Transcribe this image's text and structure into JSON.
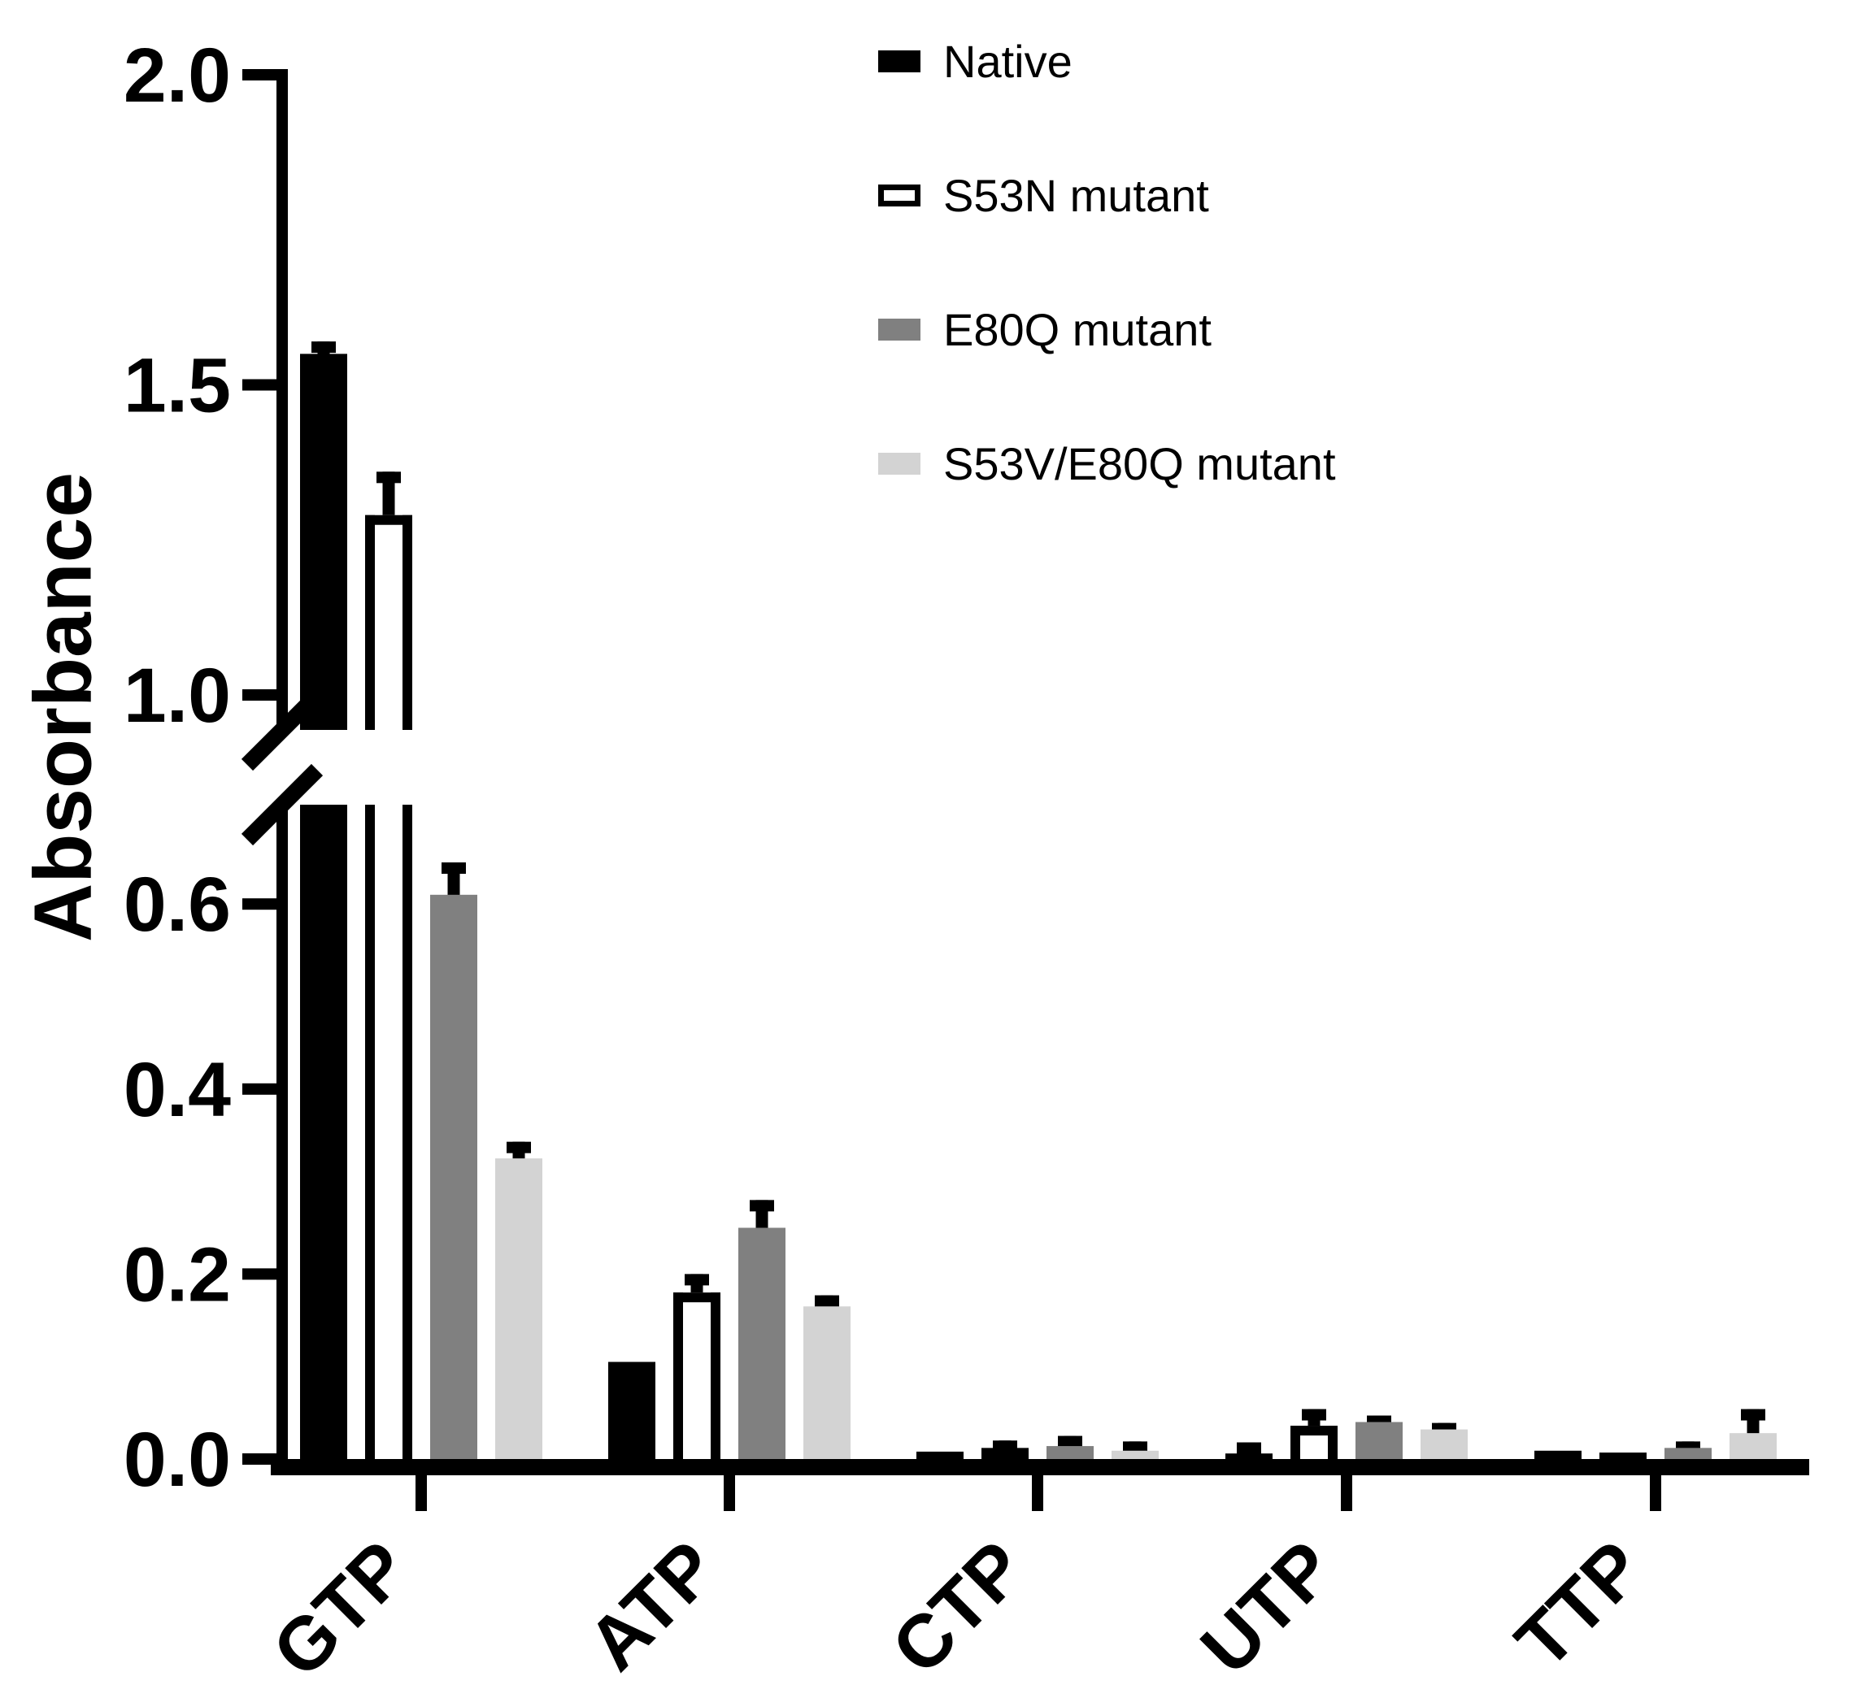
{
  "figure": {
    "background": "#ffffff"
  },
  "y_axis": {
    "label": "Absorbance",
    "lower_tick_labels": [
      "0.0",
      "0.2",
      "0.4",
      "0.6"
    ],
    "upper_tick_labels": [
      "1.0",
      "1.5",
      "2.0"
    ],
    "has_break": true
  },
  "legend": {
    "items": [
      {
        "label": "Native",
        "fill": "#000000",
        "border": "#000000"
      },
      {
        "label": "S53N mutant",
        "fill": "#ffffff",
        "border": "#000000"
      },
      {
        "label": "E80Q mutant",
        "fill": "#808080",
        "border": "#808080"
      },
      {
        "label": "S53V/E80Q mutant",
        "fill": "#d3d3d3",
        "border": "#d3d3d3"
      }
    ]
  },
  "chart_data": {
    "type": "bar",
    "title": "",
    "xlabel": "",
    "ylabel": "Absorbance",
    "categories": [
      "GTP",
      "ATP",
      "CTP",
      "UTP",
      "TTP"
    ],
    "series": [
      {
        "name": "Native",
        "color": "#000000",
        "values": [
          1.55,
          0.105,
          0.008,
          0.006,
          0.009
        ],
        "errors": [
          0.02,
          0,
          0,
          0.012,
          0
        ]
      },
      {
        "name": "S53N mutant",
        "color": "#ffffff",
        "outline": "#000000",
        "values": [
          1.29,
          0.18,
          0.012,
          0.036,
          0.007
        ],
        "errors": [
          0.07,
          0.02,
          0.008,
          0.018,
          0
        ]
      },
      {
        "name": "E80Q mutant",
        "color": "#808080",
        "values": [
          0.61,
          0.25,
          0.014,
          0.04,
          0.012
        ],
        "errors": [
          0.035,
          0.03,
          0.011,
          0.007,
          0.007
        ]
      },
      {
        "name": "S53V/E80Q mutant",
        "color": "#d3d3d3",
        "values": [
          0.325,
          0.165,
          0.009,
          0.032,
          0.028
        ],
        "errors": [
          0.018,
          0.012,
          0.01,
          0.007,
          0.026
        ]
      }
    ],
    "y_axis_break": {
      "lower_range": [
        0,
        0.71
      ],
      "upper_range": [
        1.0,
        2.0
      ],
      "lower_tick_values": [
        0,
        0.2,
        0.4,
        0.6
      ],
      "upper_tick_values": [
        1.0,
        1.5,
        2.0
      ]
    },
    "error_bars": "upper only",
    "grid": false,
    "legend_position": "top-right"
  }
}
